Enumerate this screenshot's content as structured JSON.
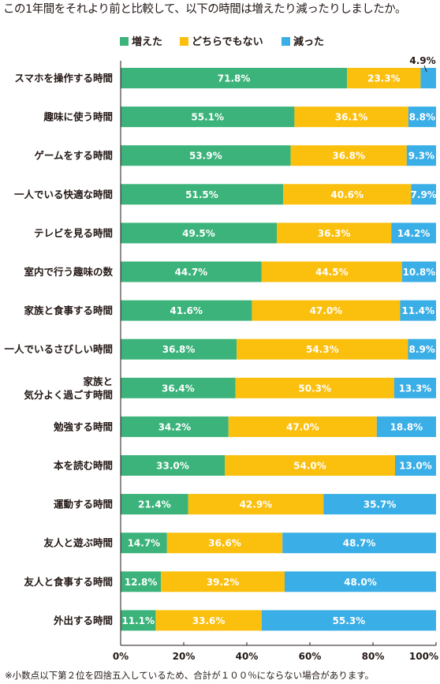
{
  "chart_data": {
    "type": "bar",
    "stacked": true,
    "orientation": "horizontal",
    "title": "この1年間をそれより前と比較して、以下の時間は増えたり減ったりしましたか。",
    "legend_position": "top-right",
    "series": [
      {
        "name": "増えた",
        "color": "#3bb37a",
        "values": [
          71.8,
          55.1,
          53.9,
          51.5,
          49.5,
          44.7,
          41.6,
          36.8,
          36.4,
          34.2,
          33.0,
          21.4,
          14.7,
          12.8,
          11.1
        ]
      },
      {
        "name": "どちらでもない",
        "color": "#fbbf0e",
        "values": [
          23.3,
          36.1,
          36.8,
          40.6,
          36.3,
          44.5,
          47.0,
          54.3,
          50.3,
          47.0,
          54.0,
          42.9,
          36.6,
          39.2,
          33.6
        ]
      },
      {
        "name": "減った",
        "color": "#3aaee6",
        "values": [
          4.9,
          8.8,
          9.3,
          7.9,
          14.2,
          10.8,
          11.4,
          8.9,
          13.3,
          18.8,
          13.0,
          35.7,
          48.7,
          48.0,
          55.3
        ]
      }
    ],
    "categories": [
      [
        "スマホを操作する時間"
      ],
      [
        "趣味に使う時間"
      ],
      [
        "ゲームをする時間"
      ],
      [
        "一人でいる快適な時間"
      ],
      [
        "テレビを見る時間"
      ],
      [
        "室内で行う趣味の数"
      ],
      [
        "家族と食事する時間"
      ],
      [
        "一人でいるさびしい時間"
      ],
      [
        "家族と",
        "気分よく過ごす時間"
      ],
      [
        "勉強する時間"
      ],
      [
        "本を読む時間"
      ],
      [
        "運動する時間"
      ],
      [
        "友人と遊ぶ時間"
      ],
      [
        "友人と食事する時間"
      ],
      [
        "外出する時間"
      ]
    ],
    "value_labels": [
      [
        "71.8%",
        "23.3%",
        "4.9%"
      ],
      [
        "55.1%",
        "36.1%",
        "8.8%"
      ],
      [
        "53.9%",
        "36.8%",
        "9.3%"
      ],
      [
        "51.5%",
        "40.6%",
        "7.9%"
      ],
      [
        "49.5%",
        "36.3%",
        "14.2%"
      ],
      [
        "44.7%",
        "44.5%",
        "10.8%"
      ],
      [
        "41.6%",
        "47.0%",
        "11.4%"
      ],
      [
        "36.8%",
        "54.3%",
        "8.9%"
      ],
      [
        "36.4%",
        "50.3%",
        "13.3%"
      ],
      [
        "34.2%",
        "47.0%",
        "18.8%"
      ],
      [
        "33.0%",
        "54.0%",
        "13.0%"
      ],
      [
        "21.4%",
        "42.9%",
        "35.7%"
      ],
      [
        "14.7%",
        "36.6%",
        "48.7%"
      ],
      [
        "12.8%",
        "39.2%",
        "48.0%"
      ],
      [
        "11.1%",
        "33.6%",
        "55.3%"
      ]
    ],
    "xlim": [
      0,
      100
    ],
    "x_ticks": [
      0,
      20,
      40,
      60,
      80,
      100
    ],
    "x_tick_labels": [
      "0%",
      "20%",
      "40%",
      "60%",
      "80%",
      "100%"
    ],
    "grid": false,
    "footnote": "※小数点以下第２位を四捨五入しているため、合計が１００％にならない場合があります。"
  }
}
